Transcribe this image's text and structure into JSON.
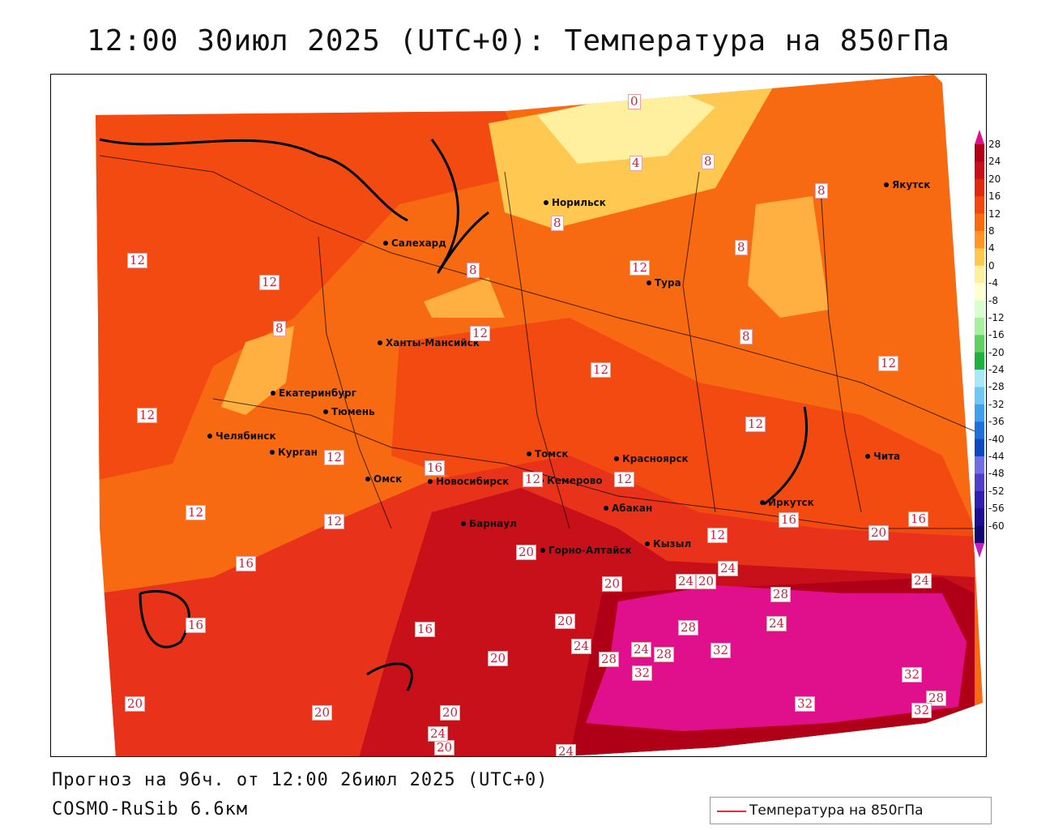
{
  "title": "12:00 30июл 2025 (UTC+0): Температура на 850гПа",
  "footer": {
    "forecast": "Прогноз на 96ч. от 12:00 26июл 2025 (UTC+0)",
    "model": "COSMO-RuSib 6.6км"
  },
  "legend": {
    "label": "Температура на 850гПа",
    "line_color": "#e03040"
  },
  "colorbar": {
    "ticks": [
      "28",
      "24",
      "20",
      "16",
      "12",
      "8",
      "4",
      "0",
      "-4",
      "-8",
      "-12",
      "-16",
      "-20",
      "-24",
      "-28",
      "-32",
      "-36",
      "-40",
      "-44",
      "-48",
      "-52",
      "-56",
      "-60"
    ],
    "colors": [
      "#b00018",
      "#c8101a",
      "#e02a10",
      "#f04810",
      "#f86c10",
      "#ff9428",
      "#ffc850",
      "#fff0a0",
      "#ffffd0",
      "#d8ffd0",
      "#a8f0a0",
      "#60d060",
      "#20b040",
      "#a8e8f8",
      "#70c8f0",
      "#40a0e8",
      "#2070d8",
      "#1048c0",
      "#7070e0",
      "#5040c8",
      "#3020b0",
      "#1c1090",
      "#100870"
    ],
    "top_color": "#e0108c",
    "bottom_color": "#c020c0"
  },
  "cities": [
    {
      "name": "Норильск"
    },
    {
      "name": "Якутск"
    },
    {
      "name": "Салехард"
    },
    {
      "name": "Тура"
    },
    {
      "name": "Ханты-Мансийск"
    },
    {
      "name": "Екатеринбург"
    },
    {
      "name": "Тюмень"
    },
    {
      "name": "Челябинск"
    },
    {
      "name": "Курган"
    },
    {
      "name": "Омск"
    },
    {
      "name": "Новосибирск"
    },
    {
      "name": "Томск"
    },
    {
      "name": "Кемерово"
    },
    {
      "name": "Красноярск"
    },
    {
      "name": "Барнаул"
    },
    {
      "name": "Горно-Алтайск"
    },
    {
      "name": "Абакан"
    },
    {
      "name": "Кызыл"
    },
    {
      "name": "Иркутск"
    },
    {
      "name": "Чита"
    }
  ],
  "contour_labels": [
    "0",
    "4",
    "8",
    "8",
    "8",
    "8",
    "8",
    "8",
    "8",
    "12",
    "12",
    "12",
    "12",
    "12",
    "12",
    "12",
    "12",
    "12",
    "12",
    "12",
    "12",
    "12",
    "12",
    "16",
    "16",
    "16",
    "16",
    "16",
    "16",
    "20",
    "20",
    "20",
    "20",
    "20",
    "20",
    "20",
    "20",
    "20",
    "20",
    "24",
    "24",
    "24",
    "24",
    "24",
    "24",
    "24",
    "24",
    "28",
    "28",
    "28",
    "28",
    "28",
    "32",
    "32",
    "32",
    "32",
    "32"
  ]
}
